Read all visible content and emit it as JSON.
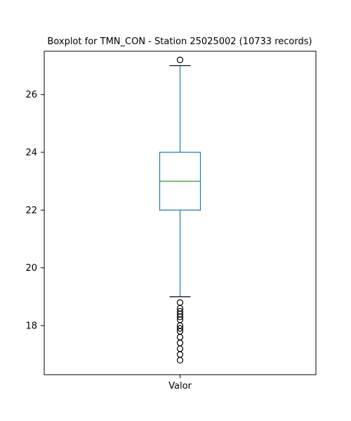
{
  "chart_data": {
    "type": "boxplot",
    "title": "Boxplot for TMN_CON - Station 25025002 (10733 records)",
    "categories": [
      "Valor"
    ],
    "yticks": [
      "18",
      "20",
      "22",
      "24",
      "26"
    ],
    "ylim": [
      16.3,
      27.5
    ],
    "grid": false,
    "colors": {
      "box": "#1f77b4",
      "median": "#2ca02c",
      "cap": "#000000",
      "outlier": "#000000",
      "axis": "#000000"
    },
    "series": [
      {
        "q1": 22.0,
        "median": 23.0,
        "q3": 24.0,
        "whisker_low": 19.0,
        "whisker_high": 27.0,
        "outliers": [
          27.2,
          18.8,
          18.6,
          18.5,
          18.4,
          18.3,
          18.2,
          18.0,
          17.9,
          17.8,
          17.6,
          17.4,
          17.2,
          17.0,
          16.8
        ]
      }
    ]
  }
}
